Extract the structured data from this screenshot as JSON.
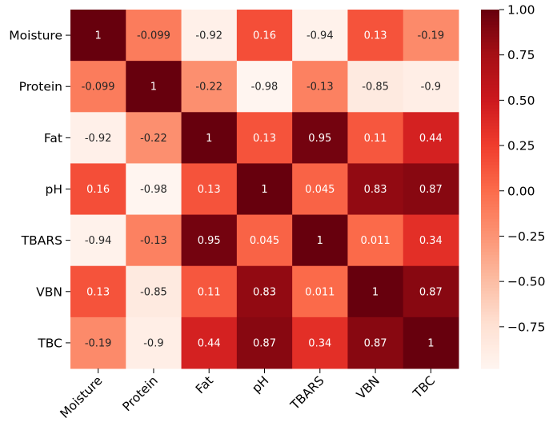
{
  "chart_data": {
    "type": "heatmap",
    "title": "",
    "xlabel": "",
    "ylabel": "",
    "colormap": "Reds",
    "vmin": -0.98,
    "vmax": 1.0,
    "rows": [
      "Moisture",
      "Protein",
      "Fat",
      "pH",
      "TBARS",
      "VBN",
      "TBC"
    ],
    "columns": [
      "Moisture",
      "Protein",
      "Fat",
      "pH",
      "TBARS",
      "VBN",
      "TBC"
    ],
    "values": [
      [
        1,
        -0.099,
        -0.92,
        0.16,
        -0.94,
        0.13,
        -0.19
      ],
      [
        -0.099,
        1,
        -0.22,
        -0.98,
        -0.13,
        -0.85,
        -0.9
      ],
      [
        -0.92,
        -0.22,
        1,
        0.13,
        0.95,
        0.11,
        0.44
      ],
      [
        0.16,
        -0.98,
        0.13,
        1,
        0.045,
        0.83,
        0.87
      ],
      [
        -0.94,
        -0.13,
        0.95,
        0.045,
        1,
        0.011,
        0.34
      ],
      [
        0.13,
        -0.85,
        0.11,
        0.83,
        0.011,
        1,
        0.87
      ],
      [
        -0.19,
        -0.9,
        0.44,
        0.87,
        0.34,
        0.87,
        1
      ]
    ],
    "annotations": [
      [
        "1",
        "-0.099",
        "-0.92",
        "0.16",
        "-0.94",
        "0.13",
        "-0.19"
      ],
      [
        "-0.099",
        "1",
        "-0.22",
        "-0.98",
        "-0.13",
        "-0.85",
        "-0.9"
      ],
      [
        "-0.92",
        "-0.22",
        "1",
        "0.13",
        "0.95",
        "0.11",
        "0.44"
      ],
      [
        "0.16",
        "-0.98",
        "0.13",
        "1",
        "0.045",
        "0.83",
        "0.87"
      ],
      [
        "-0.94",
        "-0.13",
        "0.95",
        "0.045",
        "1",
        "0.011",
        "0.34"
      ],
      [
        "0.13",
        "-0.85",
        "0.11",
        "0.83",
        "0.011",
        "1",
        "0.87"
      ],
      [
        "-0.19",
        "-0.9",
        "0.44",
        "0.87",
        "0.34",
        "0.87",
        "1"
      ]
    ],
    "colorbar": {
      "ticks": [
        1.0,
        0.75,
        0.5,
        0.25,
        0.0,
        -0.25,
        -0.5,
        -0.75
      ],
      "tick_labels": [
        "1.00",
        "0.75",
        "0.50",
        "0.25",
        "0.00",
        "−0.25",
        "−0.50",
        "−0.75"
      ],
      "orientation": "vertical",
      "placement": "right"
    }
  }
}
